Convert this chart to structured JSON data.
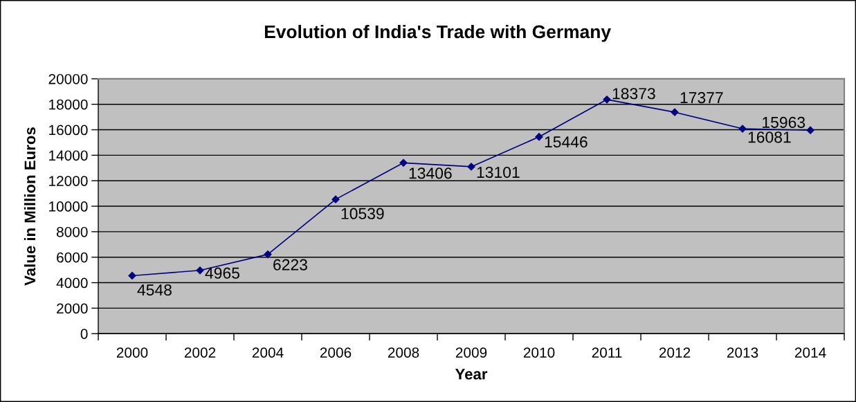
{
  "chart_data": {
    "type": "line",
    "title": "Evolution of India's Trade with Germany",
    "xlabel": "Year",
    "ylabel": "Value in Million Euros",
    "categories": [
      "2000",
      "2002",
      "2004",
      "2006",
      "2008",
      "2009",
      "2010",
      "2011",
      "2012",
      "2013",
      "2014"
    ],
    "series": [
      {
        "color": "#000080",
        "values": [
          4548,
          4965,
          6223,
          10539,
          13406,
          13101,
          15446,
          18373,
          17377,
          16081,
          15963
        ]
      }
    ],
    "ylim": [
      0,
      20000
    ],
    "yticks": [
      0,
      2000,
      4000,
      6000,
      8000,
      10000,
      12000,
      14000,
      16000,
      18000,
      20000
    ],
    "grid": "y",
    "marker": "diamond",
    "line_style": "solid",
    "data_labels": true
  }
}
